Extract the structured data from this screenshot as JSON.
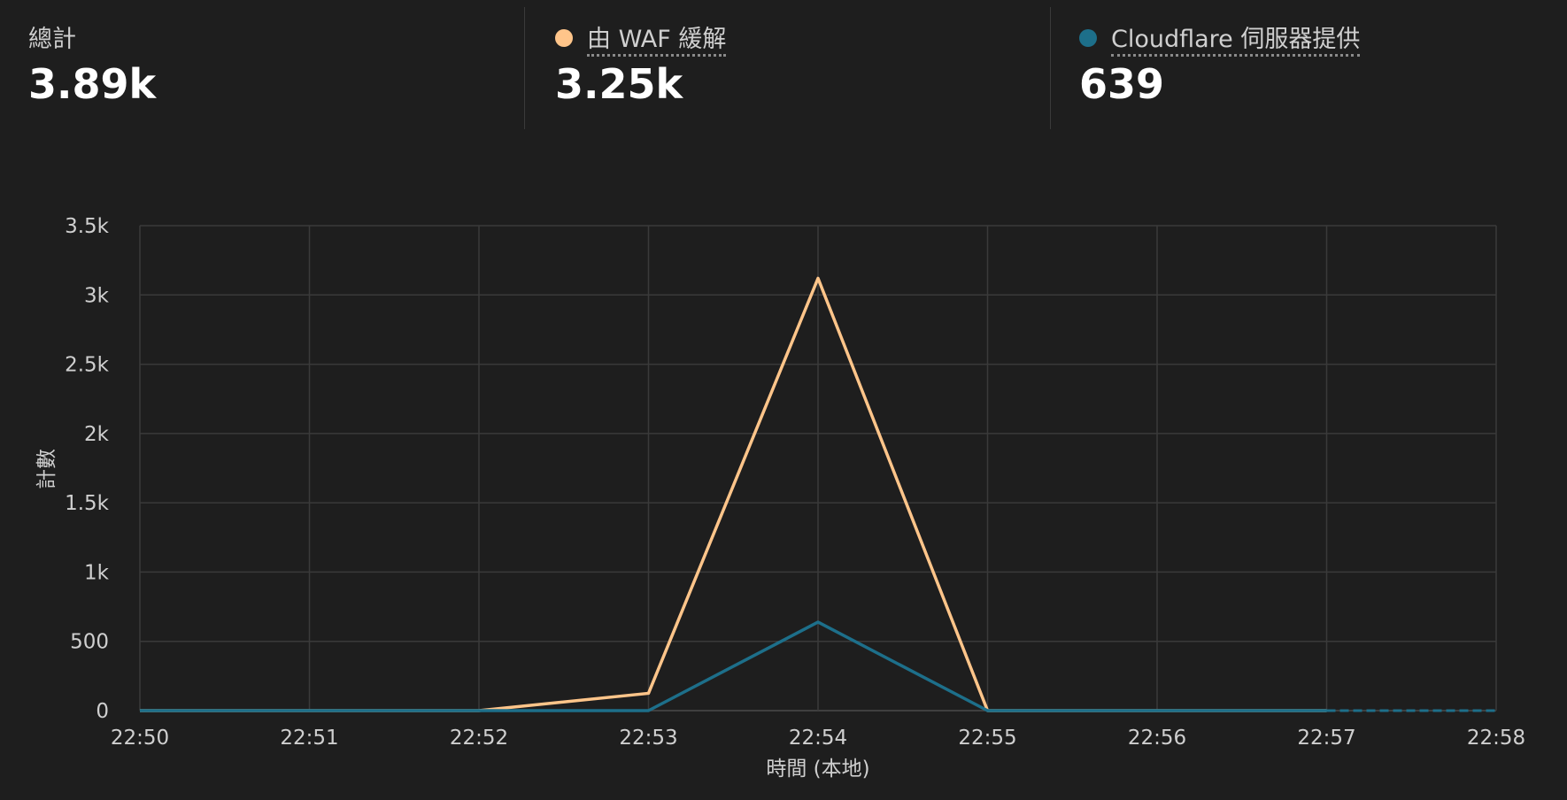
{
  "summary": {
    "total": {
      "label": "總計",
      "value": "3.89k"
    },
    "waf": {
      "label": "由 WAF 緩解",
      "value": "3.25k"
    },
    "cloudflare": {
      "label": "Cloudflare 伺服器提供",
      "value": "639"
    }
  },
  "chart_data": {
    "type": "line",
    "xlabel": "時間 (本地)",
    "ylabel": "計數",
    "x": [
      "22:50",
      "22:51",
      "22:52",
      "22:53",
      "22:54",
      "22:55",
      "22:56",
      "22:57",
      "22:58"
    ],
    "yticks": [
      "0",
      "500",
      "1k",
      "1.5k",
      "2k",
      "2.5k",
      "3k",
      "3.5k"
    ],
    "ylim": [
      0,
      3500
    ],
    "grid": true,
    "series": [
      {
        "name": "由 WAF 緩解",
        "color": "#ffc58a",
        "values": [
          0,
          0,
          0,
          125,
          3120,
          0,
          0,
          0,
          0
        ]
      },
      {
        "name": "Cloudflare 伺服器提供",
        "color": "#1d6f8a",
        "values": [
          0,
          0,
          0,
          0,
          639,
          0,
          0,
          0,
          0
        ]
      }
    ]
  }
}
